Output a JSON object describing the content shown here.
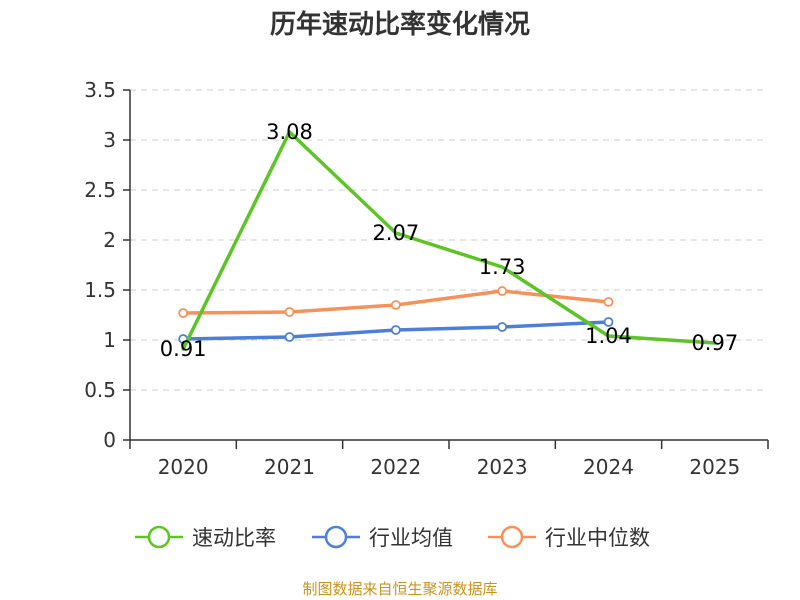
{
  "chart_data": {
    "type": "line",
    "title": "历年速动比率变化情况",
    "categories": [
      "2020",
      "2021",
      "2022",
      "2023",
      "2024",
      "2025"
    ],
    "ylim": [
      0,
      3.5
    ],
    "yticks": [
      "0",
      "0.5",
      "1",
      "1.5",
      "2",
      "2.5",
      "3",
      "3.5"
    ],
    "grid": true,
    "legend_position": "bottom",
    "series": [
      {
        "name": "速动比率",
        "color": "#5cc425",
        "marker": false,
        "values": [
          0.91,
          3.08,
          2.07,
          1.73,
          1.04,
          0.97
        ],
        "labels": [
          "0.91",
          "3.08",
          "2.07",
          "1.73",
          "1.04",
          "0.97"
        ]
      },
      {
        "name": "行业均值",
        "color": "#4d7fd9",
        "marker": true,
        "values": [
          1.01,
          1.03,
          1.1,
          1.13,
          1.18,
          null
        ]
      },
      {
        "name": "行业中位数",
        "color": "#f6915a",
        "marker": true,
        "values": [
          1.27,
          1.28,
          1.35,
          1.49,
          1.38,
          null
        ]
      }
    ]
  },
  "source": "制图数据来自恒生聚源数据库"
}
